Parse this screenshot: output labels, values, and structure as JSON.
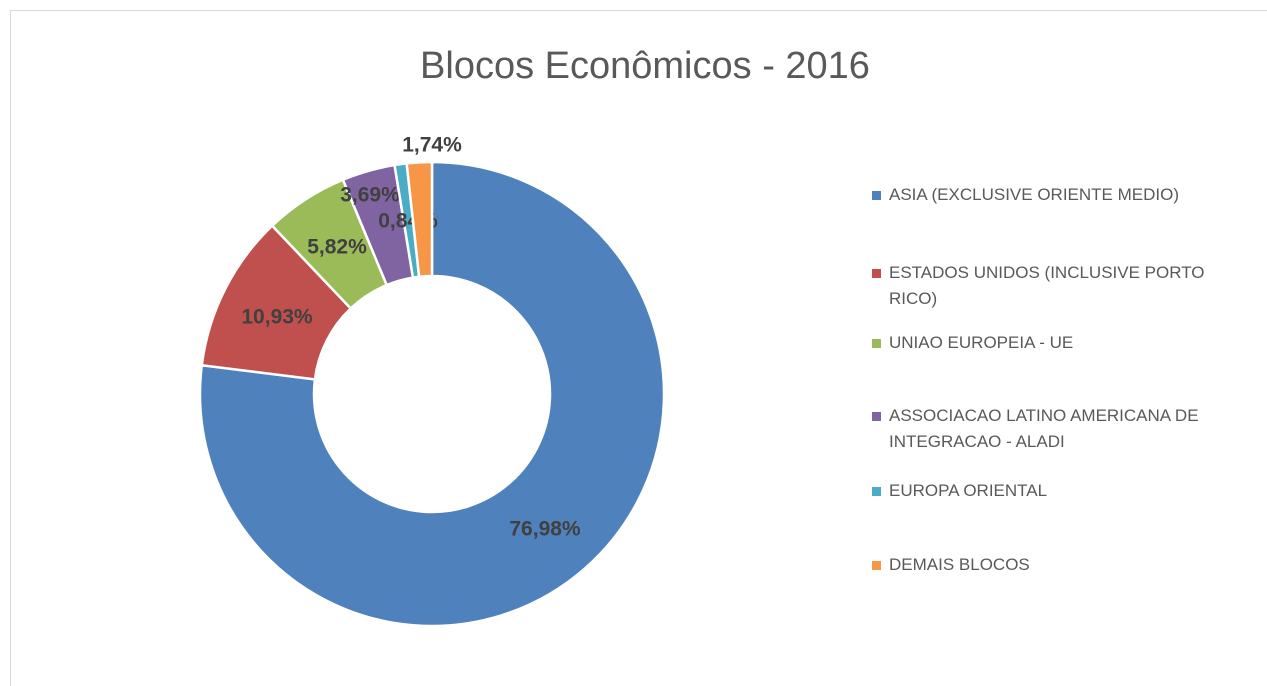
{
  "chart_data": {
    "type": "donut",
    "title": "Blocos Econômicos - 2016",
    "categories": [
      "ASIA (EXCLUSIVE ORIENTE MEDIO)",
      "ESTADOS UNIDOS (INCLUSIVE PORTO RICO)",
      "UNIAO EUROPEIA - UE",
      "ASSOCIACAO LATINO AMERICANA DE INTEGRACAO - ALADI",
      "EUROPA ORIENTAL",
      "DEMAIS BLOCOS"
    ],
    "values": [
      76.98,
      10.93,
      5.82,
      3.69,
      0.84,
      1.74
    ],
    "value_labels": [
      "76,98%",
      "10,93%",
      "5,82%",
      "3,69%",
      "0,84%",
      "1,74%"
    ],
    "colors": [
      "#4f81bd",
      "#c0504d",
      "#9bbb59",
      "#8064a2",
      "#4bacc6",
      "#f79646"
    ],
    "legend": "right"
  }
}
